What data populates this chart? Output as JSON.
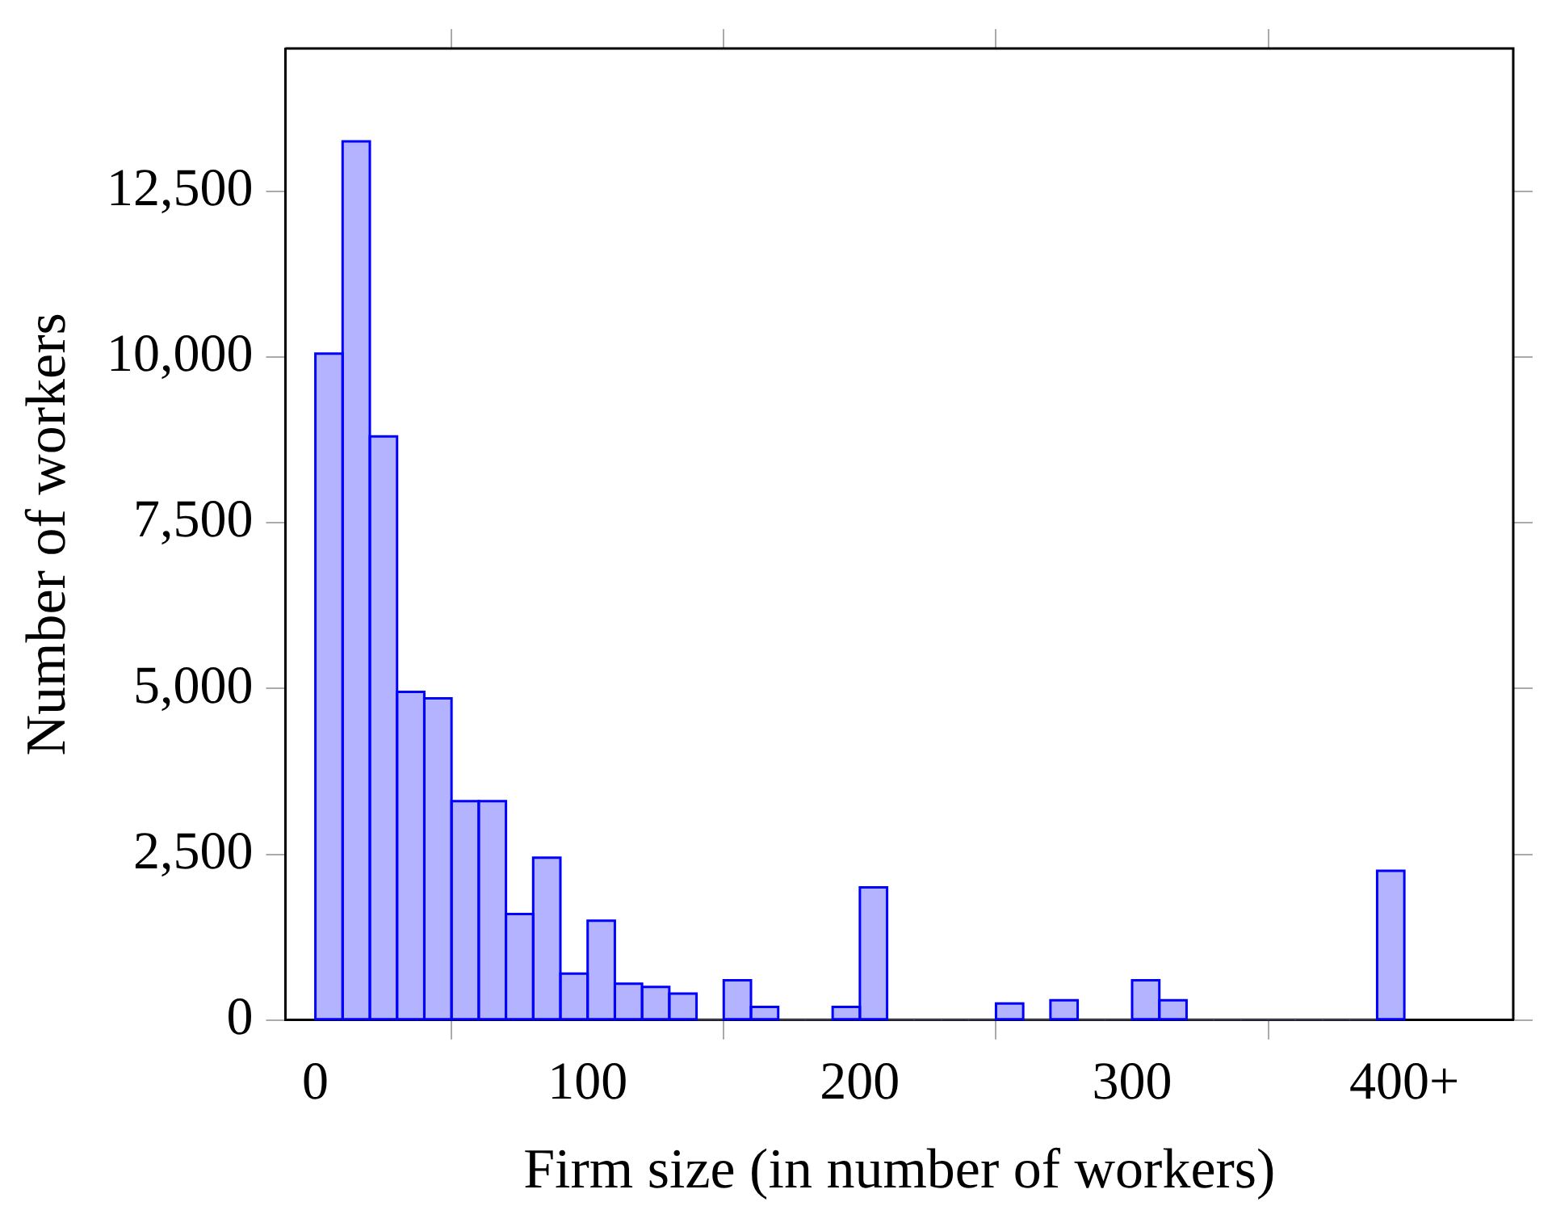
{
  "chart_data": {
    "type": "histogram",
    "xlabel": "Firm size (in number of workers)",
    "ylabel": "Number of workers",
    "bins": [
      0,
      10,
      20,
      30,
      40,
      50,
      60,
      70,
      80,
      90,
      100,
      110,
      120,
      130,
      140,
      150,
      160,
      170,
      180,
      190,
      200,
      210,
      220,
      230,
      240,
      250,
      260,
      270,
      280,
      290,
      300,
      310,
      320,
      330,
      340,
      350,
      360,
      370,
      380,
      390,
      400
    ],
    "values": [
      10050,
      13250,
      8800,
      4950,
      4850,
      3300,
      3300,
      1600,
      2450,
      700,
      1500,
      550,
      500,
      400,
      0,
      600,
      200,
      0,
      0,
      200,
      2000,
      0,
      0,
      0,
      0,
      250,
      0,
      300,
      0,
      0,
      600,
      300,
      0,
      0,
      0,
      0,
      0,
      0,
      0,
      2250
    ],
    "color": "#b3b3ff",
    "xlim": [
      -11,
      440
    ],
    "xticks": [
      0,
      100,
      200,
      300,
      {
        "value": 400,
        "label": "400+"
      }
    ],
    "ylim": [
      0,
      14650
    ],
    "yticks": [
      0,
      {
        "value": 2500,
        "label": "2,500"
      },
      {
        "value": 5000,
        "label": "5,000"
      },
      {
        "value": 7500,
        "label": "7,500"
      },
      {
        "value": 10000,
        "label": "10,000"
      },
      {
        "value": 12500,
        "label": "12,500"
      }
    ],
    "grid": false
  }
}
